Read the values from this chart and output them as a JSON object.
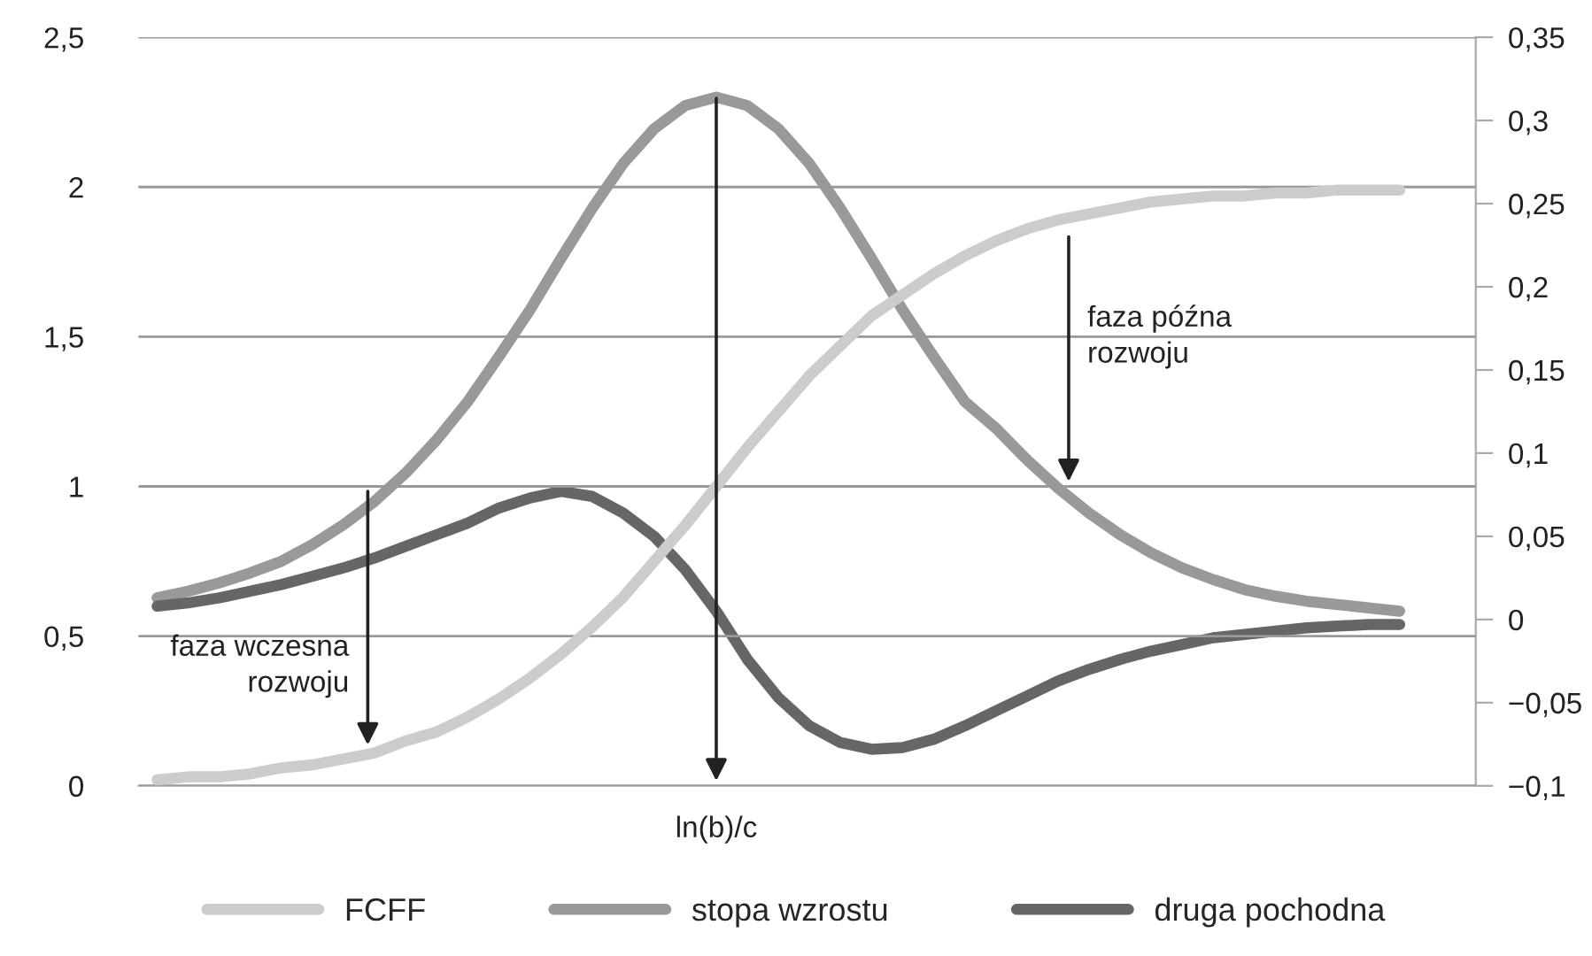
{
  "chart_data": {
    "type": "line",
    "categories": [
      null,
      null,
      null,
      null,
      null,
      null,
      null,
      null,
      null,
      null,
      null,
      null,
      null,
      null,
      null,
      null,
      null,
      null,
      null,
      null,
      null,
      null,
      null,
      null,
      null,
      null,
      null,
      null,
      null,
      null,
      null,
      null,
      null,
      null,
      null,
      null,
      null,
      null,
      null,
      null,
      null
    ],
    "series": [
      {
        "name": "FCFF",
        "color": "#cccccc",
        "values": [
          0.02,
          0.03,
          0.03,
          0.04,
          0.06,
          0.07,
          0.09,
          0.11,
          0.15,
          0.18,
          0.23,
          0.29,
          0.36,
          0.44,
          0.53,
          0.63,
          0.75,
          0.87,
          1.0,
          1.13,
          1.25,
          1.37,
          1.47,
          1.57,
          1.64,
          1.71,
          1.77,
          1.82,
          1.86,
          1.89,
          1.91,
          1.93,
          1.95,
          1.96,
          1.97,
          1.97,
          1.98,
          1.98,
          1.99,
          1.99,
          1.99
        ]
      },
      {
        "name": "stopa wzrostu",
        "color": "#999999",
        "axis": "y2",
        "values": [
          0.013,
          0.017,
          0.022,
          0.028,
          0.035,
          0.045,
          0.057,
          0.071,
          0.088,
          0.108,
          0.131,
          0.158,
          0.186,
          0.217,
          0.247,
          0.274,
          0.295,
          0.309,
          0.314,
          0.309,
          0.295,
          0.274,
          0.247,
          0.217,
          0.186,
          0.158,
          0.131,
          0.115,
          0.096,
          0.079,
          0.064,
          0.051,
          0.04,
          0.031,
          0.024,
          0.018,
          0.014,
          0.011,
          0.009,
          0.007,
          0.005
        ]
      },
      {
        "name": "druga pochodna",
        "color": "#666666",
        "axis": "y2",
        "values": [
          0.008,
          0.01,
          0.013,
          0.017,
          0.021,
          0.026,
          0.031,
          0.037,
          0.044,
          0.051,
          0.058,
          0.067,
          0.073,
          0.077,
          0.074,
          0.064,
          0.05,
          0.03,
          0.005,
          -0.024,
          -0.047,
          -0.064,
          -0.074,
          -0.078,
          -0.077,
          -0.072,
          -0.064,
          -0.055,
          -0.046,
          -0.037,
          -0.03,
          -0.024,
          -0.019,
          -0.015,
          -0.011,
          -0.009,
          -0.007,
          -0.005,
          -0.004,
          -0.003,
          -0.003
        ]
      }
    ],
    "ylim": [
      0,
      2.5
    ],
    "yticks": [
      {
        "value": 0,
        "label": "0"
      },
      {
        "value": 0.5,
        "label": "0,5"
      },
      {
        "value": 1,
        "label": "1"
      },
      {
        "value": 1.5,
        "label": "1,5"
      },
      {
        "value": 2,
        "label": "2"
      },
      {
        "value": 2.5,
        "label": "2,5"
      }
    ],
    "y2lim": [
      -0.1,
      0.35
    ],
    "y2ticks": [
      {
        "value": -0.1,
        "label": "−0,1"
      },
      {
        "value": -0.05,
        "label": "−0,05"
      },
      {
        "value": 0,
        "label": "0"
      },
      {
        "value": 0.05,
        "label": "0,05"
      },
      {
        "value": 0.1,
        "label": "0,1"
      },
      {
        "value": 0.15,
        "label": "0,15"
      },
      {
        "value": 0.2,
        "label": "0,2"
      },
      {
        "value": 0.25,
        "label": "0,25"
      },
      {
        "value": 0.3,
        "label": "0,3"
      },
      {
        "value": 0.35,
        "label": "0,35"
      }
    ],
    "annotations": [
      "faza wczesna\nrozwoju",
      "faza późna\nrozwoju",
      "ln(b)/c"
    ],
    "grid": "y",
    "legend": "bottom",
    "marker": "none",
    "line_style": "solid"
  }
}
